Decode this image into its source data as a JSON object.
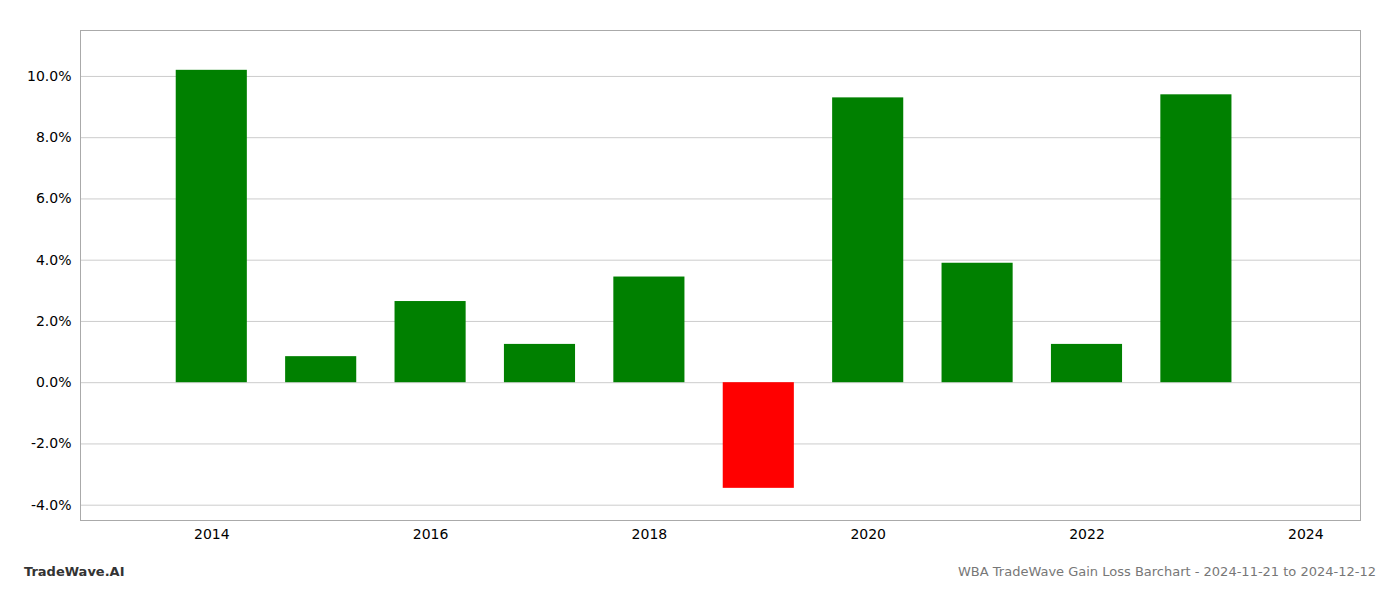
{
  "chart_data": {
    "type": "bar",
    "x": [
      2014,
      2015,
      2016,
      2017,
      2018,
      2019,
      2020,
      2021,
      2022,
      2023
    ],
    "values": [
      0.102,
      0.0085,
      0.0265,
      0.0125,
      0.0345,
      -0.0345,
      0.093,
      0.039,
      0.0125,
      0.094
    ],
    "colors": [
      "#008000",
      "#008000",
      "#008000",
      "#008000",
      "#008000",
      "#ff0000",
      "#008000",
      "#008000",
      "#008000",
      "#008000"
    ],
    "xlim": [
      2012.8,
      2024.5
    ],
    "xticks": [
      2014,
      2016,
      2018,
      2020,
      2022,
      2024
    ],
    "ylim": [
      -0.045,
      0.115
    ],
    "yticks": [
      {
        "value": -0.04,
        "label": "-4.0%"
      },
      {
        "value": -0.02,
        "label": "-2.0%"
      },
      {
        "value": 0.0,
        "label": "0.0%"
      },
      {
        "value": 0.02,
        "label": "2.0%"
      },
      {
        "value": 0.04,
        "label": "4.0%"
      },
      {
        "value": 0.06,
        "label": "6.0%"
      },
      {
        "value": 0.08,
        "label": "8.0%"
      },
      {
        "value": 0.1,
        "label": "10.0%"
      }
    ],
    "grid": true,
    "annotations": [
      "TradeWave.AI",
      "WBA TradeWave Gain Loss Barchart - 2024-11-21 to 2024-12-12"
    ]
  }
}
